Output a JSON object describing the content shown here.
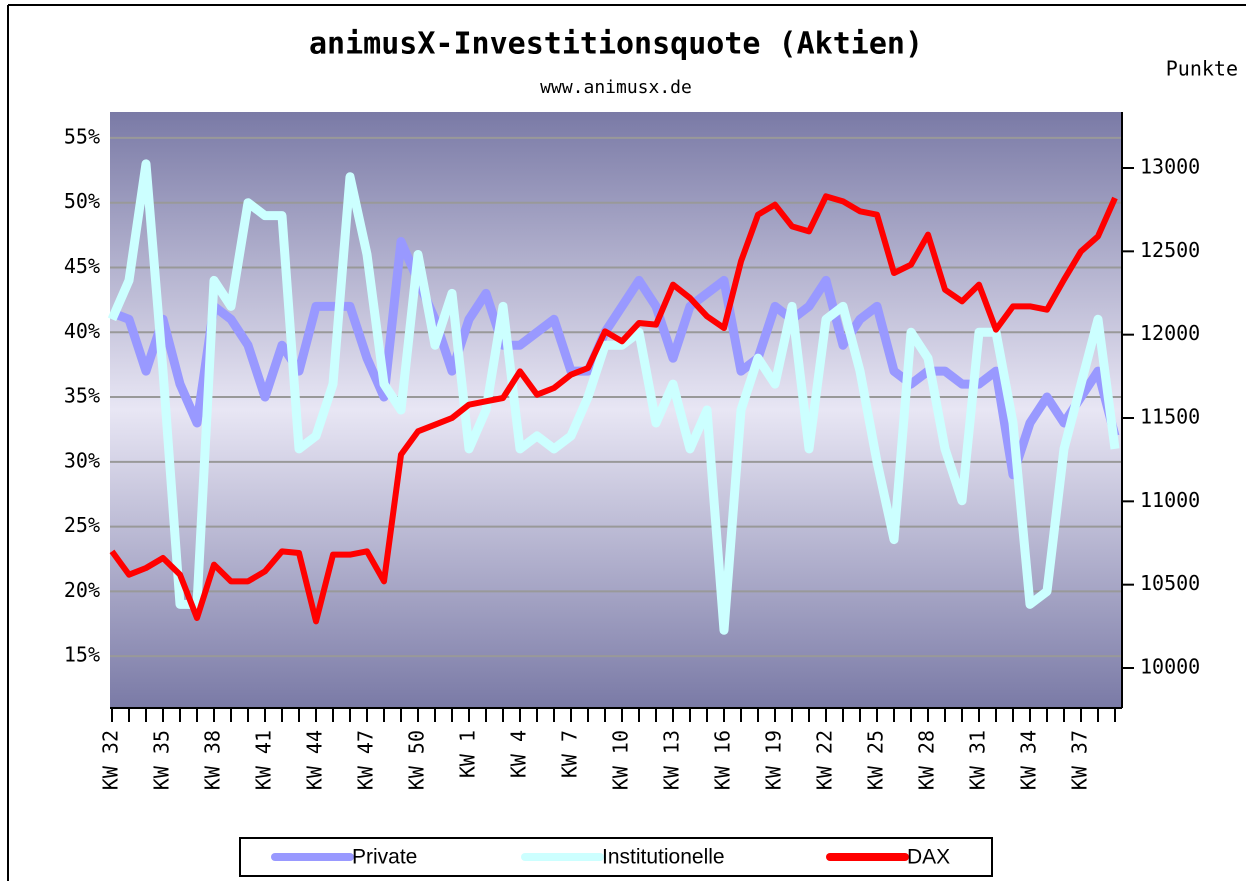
{
  "chart_data": {
    "type": "line",
    "title": "animusX-Investitionsquote (Aktien)",
    "subtitle": "www.animusx.de",
    "y2label": "Punkte",
    "categories": [
      "KW 32",
      null,
      null,
      "KW 35",
      null,
      null,
      "KW 38",
      null,
      null,
      "KW 41",
      null,
      null,
      "KW 44",
      null,
      null,
      "KW 47",
      null,
      null,
      "KW 50",
      null,
      null,
      "KW 1",
      null,
      null,
      "KW 4",
      null,
      null,
      "KW 7",
      null,
      null,
      "KW 10",
      null,
      null,
      "KW 13",
      null,
      null,
      "KW 16",
      null,
      null,
      "KW 19",
      null,
      null,
      "KW 22",
      null,
      null,
      "KW 25",
      null,
      null,
      "KW 28",
      null,
      null,
      "KW 31",
      null,
      null,
      "KW 34",
      null,
      null,
      "KW 37",
      null,
      null
    ],
    "series": [
      {
        "name": "Private",
        "color": "#9999ff",
        "values": [
          41.5,
          41,
          37,
          41,
          36,
          33,
          42,
          41,
          39,
          35,
          39,
          37,
          42,
          42,
          42,
          38,
          35,
          47,
          44,
          41,
          37,
          41,
          43,
          39,
          39,
          40,
          41,
          37,
          37,
          40,
          42,
          44,
          42,
          38,
          42,
          43,
          44,
          37,
          38,
          42,
          41,
          42,
          44,
          39,
          41,
          42,
          37,
          36,
          37,
          37,
          36,
          36,
          37,
          29,
          33,
          35,
          33,
          35,
          37,
          32
        ]
      },
      {
        "name": "Institutionelle",
        "color": "#ccffff",
        "values": [
          41,
          44,
          53,
          37,
          19,
          19,
          44,
          42,
          50,
          49,
          49,
          31,
          32,
          36,
          52,
          46,
          36,
          34,
          46,
          39,
          43,
          31,
          34,
          42,
          31,
          32,
          31,
          32,
          35,
          39,
          39,
          40,
          33,
          36,
          31,
          34,
          17,
          34,
          38,
          36,
          42,
          31,
          41,
          42,
          37,
          30,
          24,
          40,
          38,
          31,
          27,
          40,
          40,
          33,
          19,
          20,
          31,
          36,
          41,
          31
        ]
      },
      {
        "name": "DAX",
        "color": "#ff0000",
        "axis": "y2",
        "values": [
          10700,
          10560,
          10600,
          10660,
          10560,
          10300,
          10620,
          10520,
          10520,
          10580,
          10700,
          10690,
          10280,
          10680,
          10680,
          10700,
          10520,
          11280,
          11420,
          11460,
          11500,
          11580,
          11600,
          11620,
          11780,
          11640,
          11680,
          11760,
          11800,
          12020,
          11960,
          12070,
          12060,
          12300,
          12220,
          12110,
          12040,
          12440,
          12720,
          12780,
          12650,
          12620,
          12830,
          12800,
          12740,
          12720,
          12370,
          12420,
          12600,
          12270,
          12200,
          12300,
          12030,
          12170,
          12170,
          12150,
          12330,
          12500,
          12590,
          12820
        ]
      }
    ],
    "ylim": [
      11,
      57
    ],
    "yticks": [
      {
        "value": 15,
        "label": "15%"
      },
      {
        "value": 20,
        "label": "20%"
      },
      {
        "value": 25,
        "label": "25%"
      },
      {
        "value": 30,
        "label": "30%"
      },
      {
        "value": 35,
        "label": "35%"
      },
      {
        "value": 40,
        "label": "40%"
      },
      {
        "value": 45,
        "label": "45%"
      },
      {
        "value": 50,
        "label": "50%"
      },
      {
        "value": 55,
        "label": "55%"
      }
    ],
    "y2lim": [
      9760,
      13336
    ],
    "y2ticks": [
      10000,
      10500,
      11000,
      11500,
      12000,
      12500,
      13000
    ],
    "grid": true
  }
}
